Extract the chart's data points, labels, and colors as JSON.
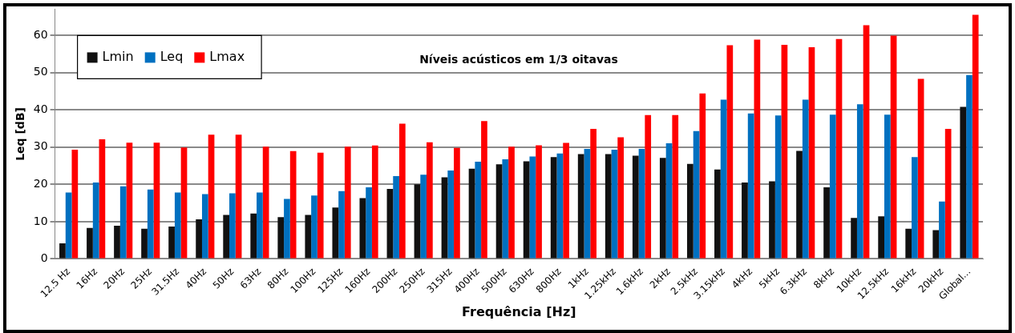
{
  "chart_data": {
    "type": "bar",
    "title": "Níveis acústicos em 1/3 oitavas",
    "xlabel": "Frequência [Hz]",
    "ylabel": "Leq [dB]",
    "categories": [
      "12.5 Hz",
      "16Hz",
      "20Hz",
      "25Hz",
      "31.5Hz",
      "40Hz",
      "50Hz",
      "63Hz",
      "80Hz",
      "100Hz",
      "125Hz",
      "160Hz",
      "200Hz",
      "250Hz",
      "315Hz",
      "400Hz",
      "500Hz",
      "630Hz",
      "800Hz",
      "1kHz",
      "1.25kHz",
      "1.6kHz",
      "2kHz",
      "2.5kHz",
      "3.15kHz",
      "4kHz",
      "5kHz",
      "6.3kHz",
      "8kHz",
      "10kHz",
      "12.5kHz",
      "16kHz",
      "20kHz",
      "Global..."
    ],
    "series": [
      {
        "name": "Lmin",
        "color": "#111111",
        "values": [
          4.2,
          8.3,
          8.9,
          8.1,
          8.7,
          10.6,
          11.8,
          12.2,
          11.2,
          11.8,
          13.8,
          16.3,
          18.8,
          20.0,
          21.9,
          24.2,
          25.4,
          26.2,
          27.3,
          28.1,
          28.1,
          27.7,
          27.1,
          25.5,
          24.0,
          20.5,
          20.8,
          29.0,
          19.2,
          11.0,
          11.4,
          8.1,
          7.7,
          40.8
        ]
      },
      {
        "name": "Leq",
        "color": "#0070c0",
        "values": [
          17.8,
          20.5,
          19.5,
          18.6,
          17.8,
          17.4,
          17.6,
          17.8,
          16.1,
          17.0,
          18.2,
          19.2,
          22.2,
          22.6,
          23.7,
          26.1,
          26.7,
          27.5,
          28.3,
          29.5,
          29.3,
          29.5,
          31.0,
          34.3,
          42.7,
          39.0,
          38.5,
          42.7,
          38.7,
          41.5,
          38.7,
          27.3,
          15.4,
          49.3
        ]
      },
      {
        "name": "Lmax",
        "color": "#ff0000",
        "values": [
          29.3,
          32.1,
          31.2,
          31.2,
          29.9,
          33.3,
          33.3,
          30.1,
          28.9,
          28.5,
          30.1,
          30.4,
          36.3,
          31.3,
          29.8,
          37.0,
          30.1,
          30.5,
          31.1,
          34.9,
          32.6,
          38.6,
          38.6,
          44.4,
          57.3,
          58.8,
          57.4,
          56.8,
          59.0,
          62.7,
          59.9,
          48.3,
          34.9,
          65.5
        ]
      }
    ],
    "ylim": [
      0,
      67
    ],
    "yticks": [
      0,
      10,
      20,
      30,
      40,
      50,
      60
    ],
    "grid": "y",
    "legend": "top left"
  }
}
